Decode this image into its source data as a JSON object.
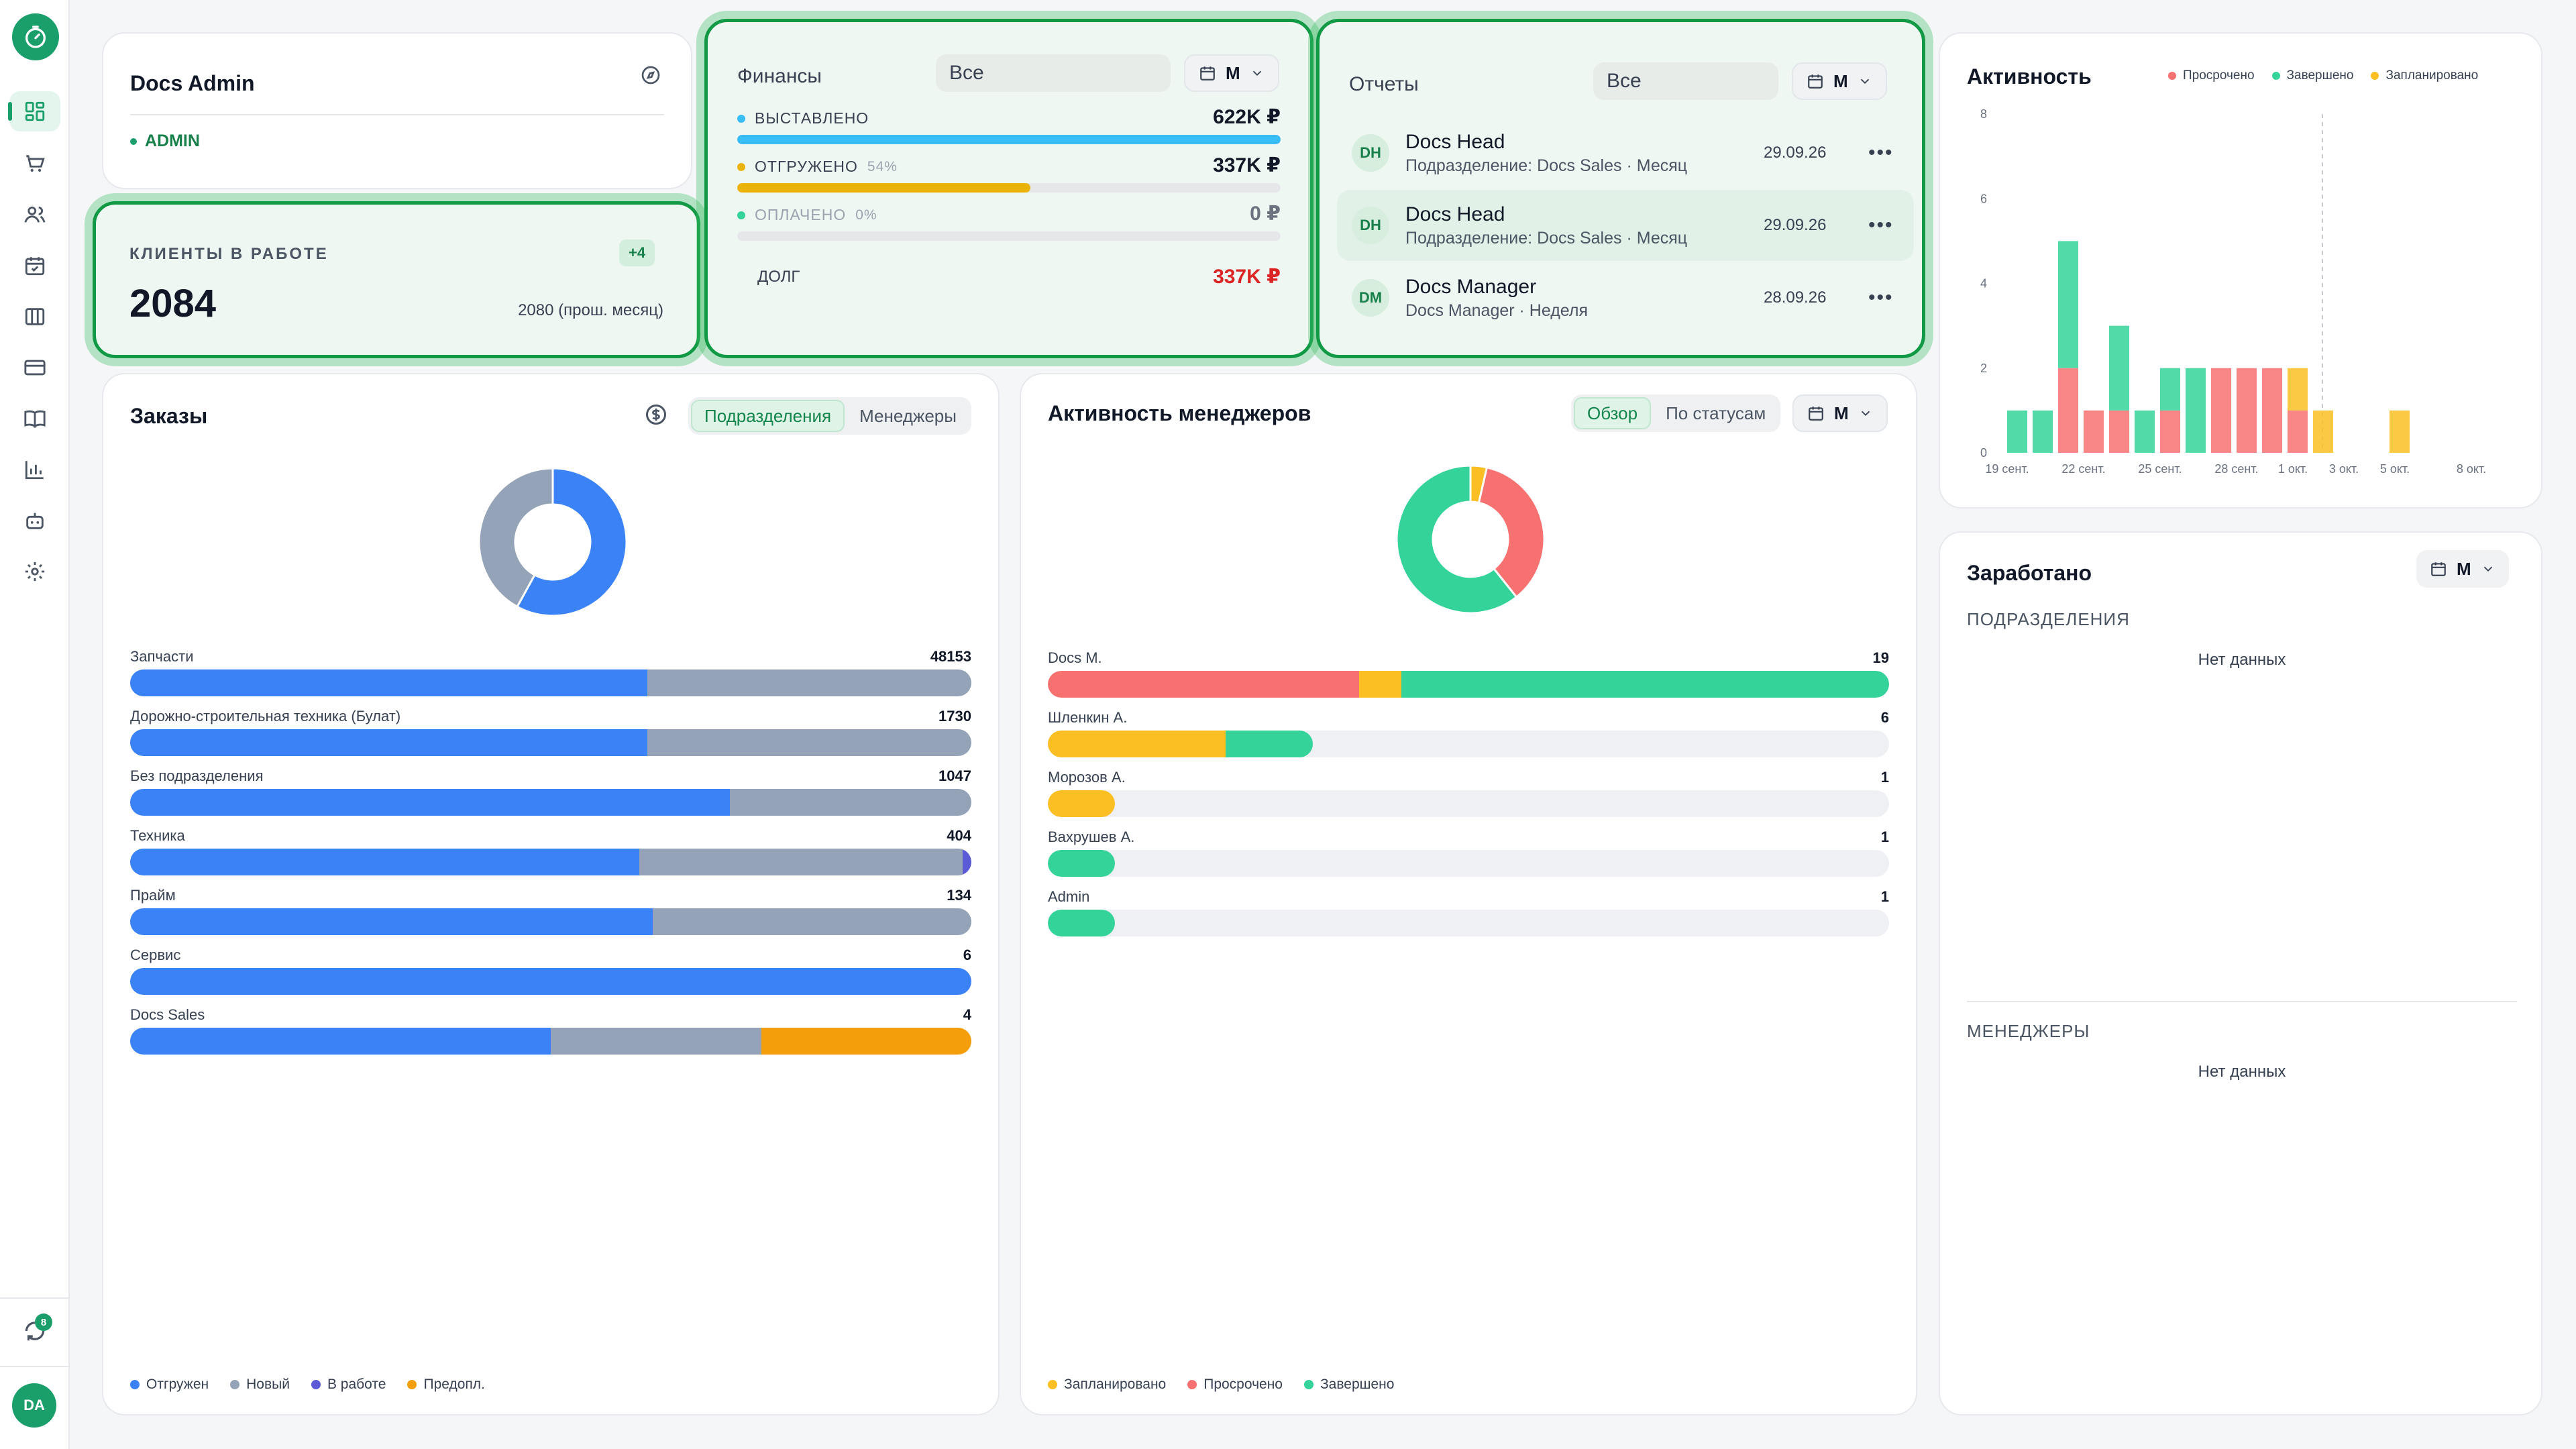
{
  "colors": {
    "accent": "#1a9e6a",
    "blue": "#3b82f6",
    "gray": "#94a3b8",
    "indigo": "#5b5bd6",
    "orange": "#f59e0b",
    "red": "#f87171",
    "green": "#34d399",
    "yellow": "#fbbf24"
  },
  "profile": {
    "name": "Docs Admin",
    "role": "ADMIN"
  },
  "clients": {
    "label": "КЛИЕНТЫ В РАБОТЕ",
    "badge": "+4",
    "value": "2084",
    "prev": "2080 (прош. месяц)"
  },
  "finance": {
    "title": "Финансы",
    "filter": "Все",
    "period": "М",
    "rows": [
      {
        "label": "ВЫСТАВЛЕНО",
        "pct": "",
        "value": "622K ₽",
        "fill": 1.0,
        "color": "#38bdf8"
      },
      {
        "label": "ОТГРУЖЕНО",
        "pct": "54%",
        "value": "337K ₽",
        "fill": 0.54,
        "color": "#eab308"
      },
      {
        "label": "ОПЛАЧЕНО",
        "pct": "0%",
        "value": "0 ₽",
        "fill": 0,
        "color": "#34d399"
      }
    ],
    "debt_label": "ДОЛГ",
    "debt_value": "337K ₽"
  },
  "reports": {
    "title": "Отчеты",
    "filter": "Все",
    "period": "М",
    "items": [
      {
        "avatar": "DH",
        "name": "Docs Head",
        "sub": "Подразделение: Docs Sales · Месяц",
        "date": "29.09.26"
      },
      {
        "avatar": "DH",
        "name": "Docs Head",
        "sub": "Подразделение: Docs Sales · Месяц",
        "date": "29.09.26"
      },
      {
        "avatar": "DM",
        "name": "Docs Manager",
        "sub": "Docs Manager · Неделя",
        "date": "28.09.26"
      }
    ]
  },
  "activity": {
    "title": "Активность",
    "legend": [
      "Просрочено",
      "Завершено",
      "Запланировано"
    ],
    "chart_data": {
      "type": "bar",
      "stacked": true,
      "y_ticks": [
        "0",
        "2",
        "4",
        "6",
        "8"
      ],
      "ylim": [
        0,
        8
      ],
      "x_tick_labels": [
        "19 сент.",
        "22 сент.",
        "25 сент.",
        "28 сент.",
        "1 окт.",
        "3 окт.",
        "5 окт.",
        "8 окт."
      ],
      "series": [
        {
          "name": "Просрочено",
          "color": "#f87171",
          "values": [
            0,
            0,
            2,
            1,
            1,
            0,
            1,
            0,
            2,
            2,
            2,
            1,
            0,
            0,
            0,
            0,
            0,
            0
          ]
        },
        {
          "name": "Завершено",
          "color": "#34d399",
          "values": [
            1,
            1,
            3,
            0,
            2,
            1,
            1,
            2,
            0,
            0,
            0,
            0,
            0,
            0,
            0,
            0,
            0,
            0
          ]
        },
        {
          "name": "Запланировано",
          "color": "#fbbf24",
          "values": [
            0,
            0,
            0,
            0,
            0,
            0,
            0,
            0,
            0,
            0,
            0,
            1,
            1,
            0,
            0,
            1,
            0,
            0
          ]
        }
      ]
    }
  },
  "orders": {
    "title": "Заказы",
    "tabs": [
      "Подразделения",
      "Менеджеры"
    ],
    "chart_data": {
      "type": "pie",
      "donut": true,
      "labels": [
        "Отгружен",
        "Новый",
        "В работе",
        "Предопл."
      ],
      "values": [
        58,
        42,
        0,
        0
      ]
    },
    "rows": [
      {
        "label": "Запчасти",
        "value": "48153",
        "parts": [
          0.615,
          0.385,
          0,
          0
        ]
      },
      {
        "label": "Дорожно-строительная техника (Булат)",
        "value": "1730",
        "parts": [
          0.615,
          0.385,
          0,
          0
        ]
      },
      {
        "label": "Без подразделения",
        "value": "1047",
        "parts": [
          0.713,
          0.287,
          0,
          0
        ]
      },
      {
        "label": "Техника",
        "value": "404",
        "parts": [
          0.605,
          0.385,
          0.01,
          0
        ]
      },
      {
        "label": "Прайм",
        "value": "134",
        "parts": [
          0.621,
          0.379,
          0,
          0
        ]
      },
      {
        "label": "Сервис",
        "value": "6",
        "parts": [
          1,
          0,
          0,
          0
        ]
      },
      {
        "label": "Docs Sales",
        "value": "4",
        "parts": [
          0.5,
          0.25,
          0,
          0.25
        ]
      }
    ],
    "legend": [
      "Отгружен",
      "Новый",
      "В работе",
      "Предопл."
    ]
  },
  "managers": {
    "title": "Активность менеджеров",
    "tabs": [
      "Обзор",
      "По статусам"
    ],
    "period": "М",
    "chart_data": {
      "type": "pie",
      "donut": true,
      "labels": [
        "Запланировано",
        "Просрочено",
        "Завершено"
      ],
      "values": [
        1,
        10,
        17
      ]
    },
    "rows": [
      {
        "label": "Docs M.",
        "value": "19",
        "width": 1.0,
        "parts": [
          0.37,
          0.05,
          0.58
        ]
      },
      {
        "label": "Шленкин А.",
        "value": "6",
        "width": 0.315,
        "parts": [
          0,
          0.67,
          0.33
        ]
      },
      {
        "label": "Морозов А.",
        "value": "1",
        "width": 0.08,
        "parts": [
          0,
          1,
          0
        ]
      },
      {
        "label": "Вахрушев А.",
        "value": "1",
        "width": 0.08,
        "parts": [
          0,
          0,
          1
        ]
      },
      {
        "label": "Admin",
        "value": "1",
        "width": 0.08,
        "parts": [
          0,
          0,
          1
        ]
      }
    ],
    "legend": [
      "Запланировано",
      "Просрочено",
      "Завершено"
    ]
  },
  "earned": {
    "title": "Заработано",
    "period": "М",
    "dept_label": "ПОДРАЗДЕЛЕНИЯ",
    "managers_label": "МЕНЕДЖЕРЫ",
    "empty": "Нет данных"
  }
}
